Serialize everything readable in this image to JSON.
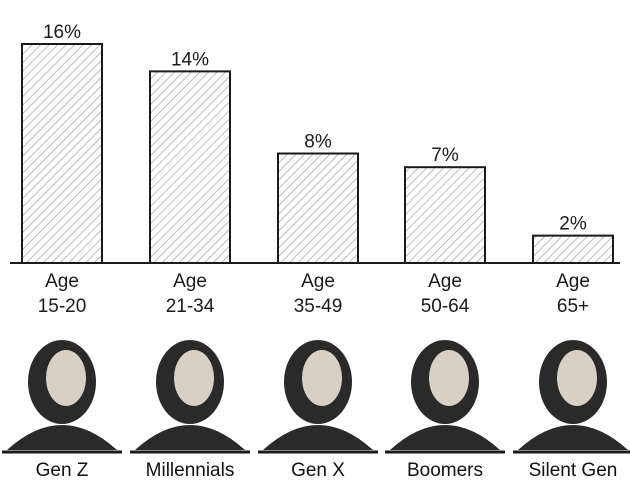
{
  "chart_data": {
    "type": "bar",
    "categories": [
      "Age 15-20",
      "Age 21-34",
      "Age 35-49",
      "Age 50-64",
      "Age 65+"
    ],
    "category_lines": [
      [
        "Age",
        "15-20"
      ],
      [
        "Age",
        "21-34"
      ],
      [
        "Age",
        "35-49"
      ],
      [
        "Age",
        "50-64"
      ],
      [
        "Age",
        "65+"
      ]
    ],
    "values": [
      16,
      14,
      8,
      7,
      2
    ],
    "value_labels": [
      "16%",
      "14%",
      "8%",
      "7%",
      "2%"
    ],
    "generations": [
      "Gen Z",
      "Millennials",
      "Gen X",
      "Boomers",
      "Silent Gen"
    ],
    "ylim": [
      0,
      16
    ],
    "grid": false,
    "bar_fill": "diagonal-hatch",
    "colors": {
      "bar_stroke": "#1a1a1a",
      "hatch": "#9a9a9a",
      "text": "#1a1a1a",
      "portrait_dark": "#2a2a2a",
      "portrait_skin": "#d8d0c4"
    }
  }
}
